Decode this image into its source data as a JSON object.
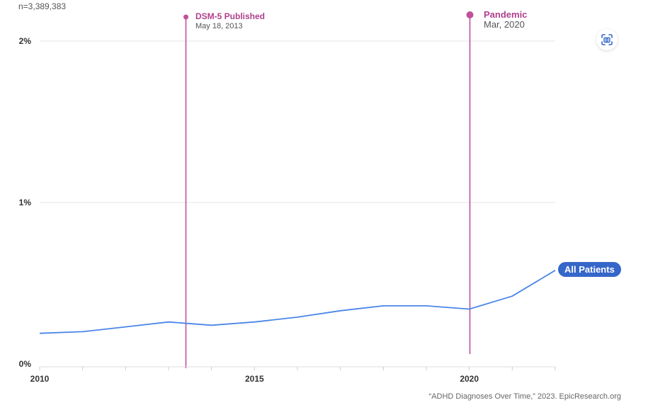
{
  "header": {
    "sample_size": "n=3,389,383"
  },
  "toolbar": {
    "screenshot_icon": "camera-scan-icon"
  },
  "footer": {
    "citation": "“ADHD Diagnoses Over Time,” 2023. EpicResearch.org"
  },
  "chart_data": {
    "type": "line",
    "x": [
      2010,
      2011,
      2012,
      2013,
      2014,
      2015,
      2016,
      2017,
      2018,
      2019,
      2020,
      2021,
      2022
    ],
    "xticklabels": [
      "2010",
      "2015",
      "2020"
    ],
    "xtickvalues": [
      2010,
      2015,
      2020
    ],
    "yticklabels": [
      "0%",
      "1%",
      "2%"
    ],
    "ytickvalues": [
      0,
      1,
      2
    ],
    "ylim": [
      0,
      2
    ],
    "xlim": [
      2010,
      2022
    ],
    "grid": true,
    "series": [
      {
        "name": "All Patients",
        "color": "#4a86e8",
        "values": [
          0.19,
          0.2,
          0.23,
          0.26,
          0.24,
          0.26,
          0.29,
          0.33,
          0.36,
          0.36,
          0.34,
          0.42,
          0.58
        ]
      }
    ],
    "annotations": [
      {
        "x": 2013.4,
        "title": "DSM-5 Published",
        "subtitle": "May 18, 2013",
        "color": "#c0509a"
      },
      {
        "x": 2020.0,
        "title": "Pandemic",
        "subtitle": "Mar, 2020",
        "color": "#c0509a"
      }
    ]
  }
}
